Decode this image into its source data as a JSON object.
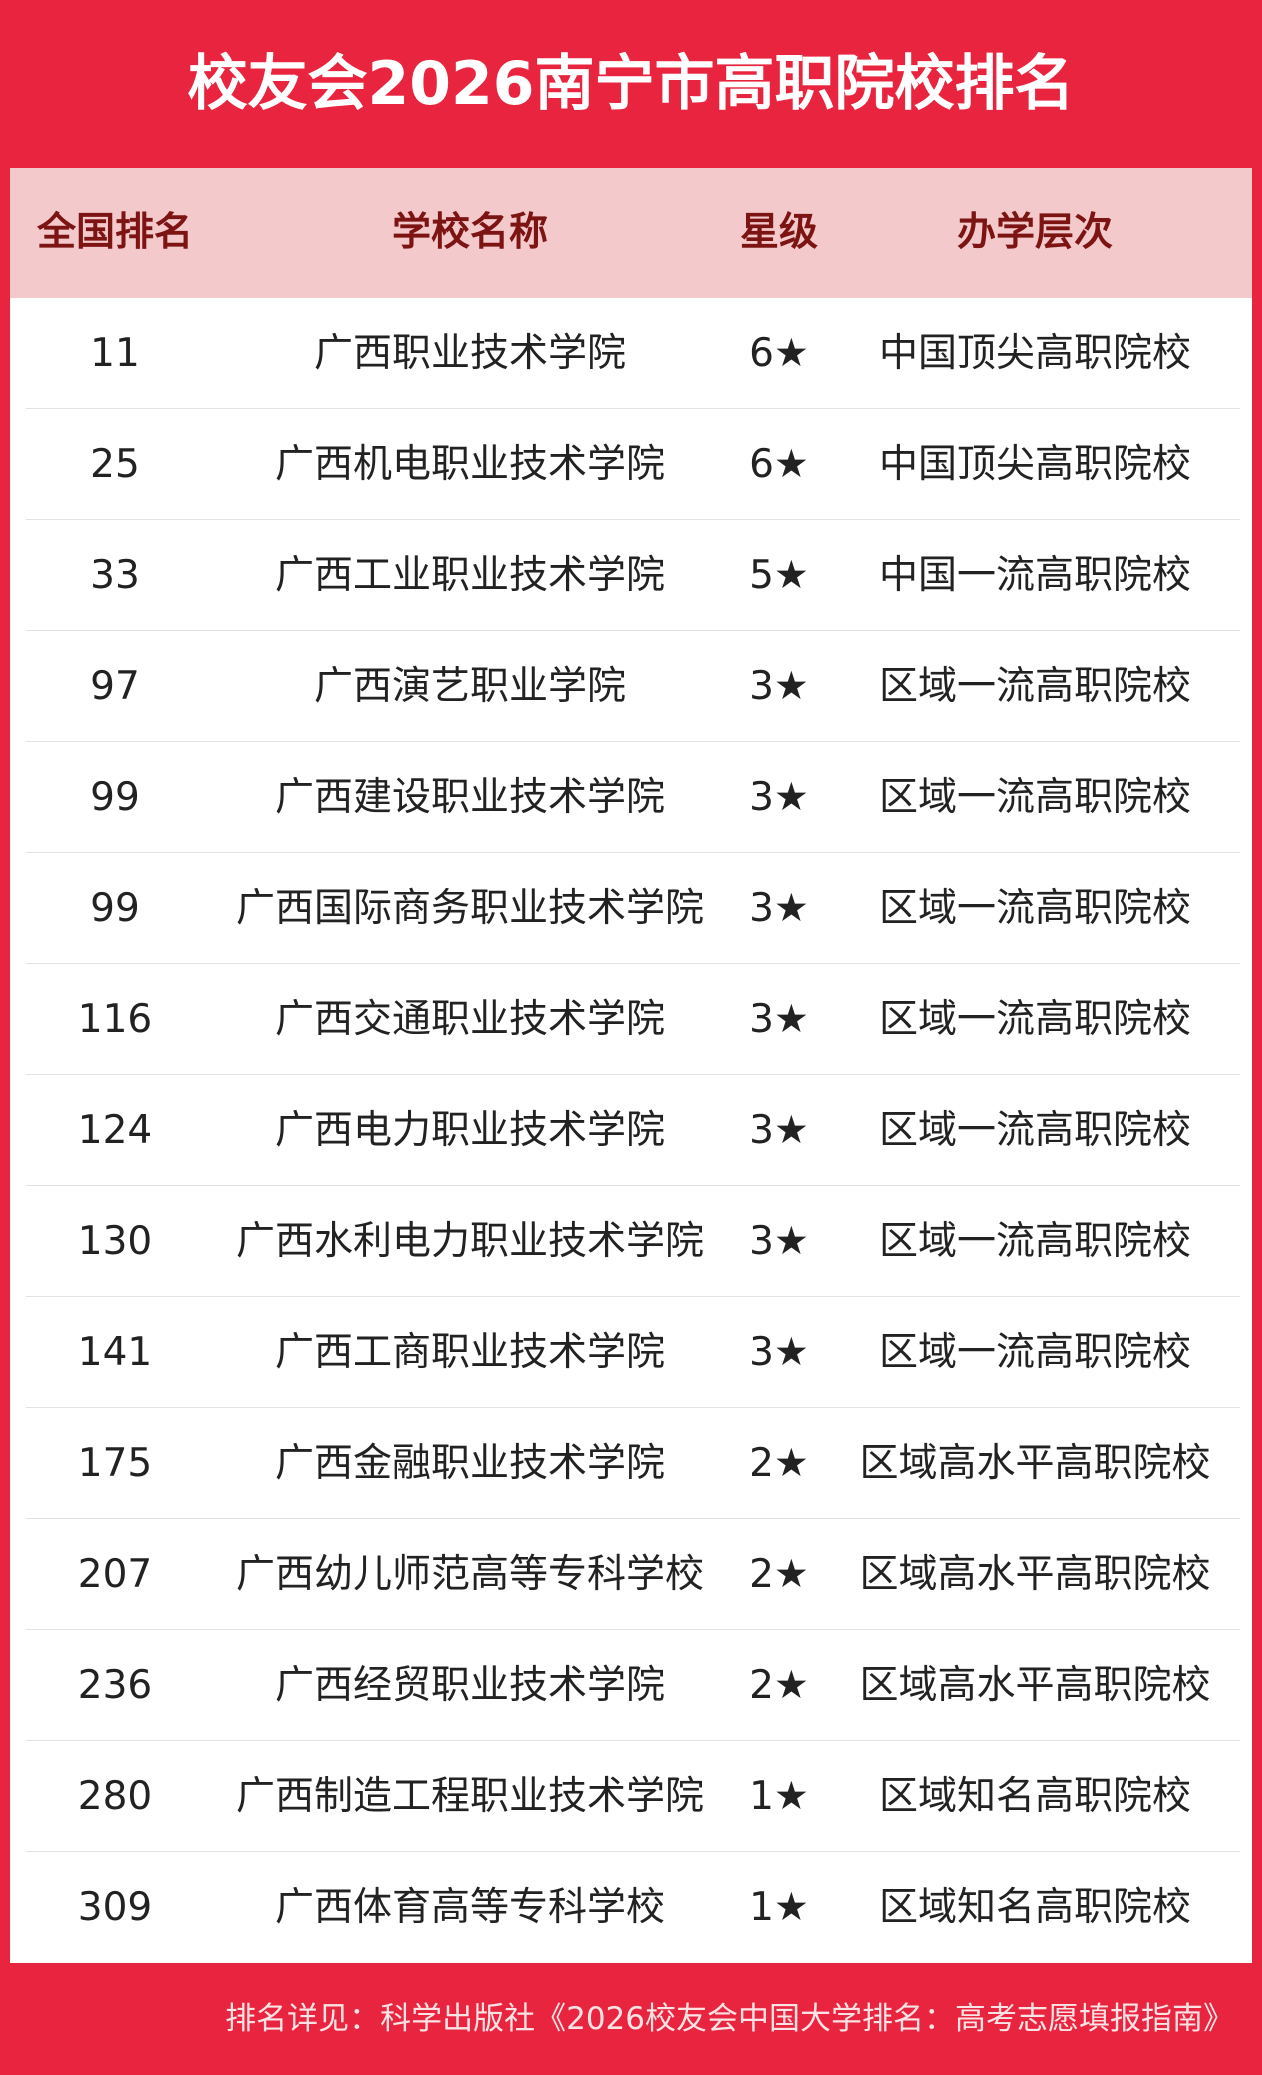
{
  "header": {
    "title": "校友会2026南宁市高职院校排名"
  },
  "table": {
    "columns": [
      "全国排名",
      "学校名称",
      "星级",
      "办学层次"
    ],
    "rows": [
      [
        11,
        "广西职业技术学院",
        "6★",
        "中国顶尖高职院校"
      ],
      [
        25,
        "广西机电职业技术学院",
        "6★",
        "中国顶尖高职院校"
      ],
      [
        33,
        "广西工业职业技术学院",
        "5★",
        "中国一流高职院校"
      ],
      [
        97,
        "广西演艺职业学院",
        "3★",
        "区域一流高职院校"
      ],
      [
        99,
        "广西建设职业技术学院",
        "3★",
        "区域一流高职院校"
      ],
      [
        99,
        "广西国际商务职业技术学院",
        "3★",
        "区域一流高职院校"
      ],
      [
        116,
        "广西交通职业技术学院",
        "3★",
        "区域一流高职院校"
      ],
      [
        124,
        "广西电力职业技术学院",
        "3★",
        "区域一流高职院校"
      ],
      [
        130,
        "广西水利电力职业技术学院",
        "3★",
        "区域一流高职院校"
      ],
      [
        141,
        "广西工商职业技术学院",
        "3★",
        "区域一流高职院校"
      ],
      [
        175,
        "广西金融职业技术学院",
        "2★",
        "区域高水平高职院校"
      ],
      [
        207,
        "广西幼儿师范高等专科学校",
        "2★",
        "区域高水平高职院校"
      ],
      [
        236,
        "广西经贸职业技术学院",
        "2★",
        "区域高水平高职院校"
      ],
      [
        280,
        "广西制造工程职业技术学院",
        "1★",
        "区域知名高职院校"
      ],
      [
        309,
        "广西体育高等专科学校",
        "1★",
        "区域知名高职院校"
      ]
    ]
  },
  "footer": {
    "source": "排名详见：科学出版社《2026校友会中国大学排名：高考志愿填报指南》"
  }
}
